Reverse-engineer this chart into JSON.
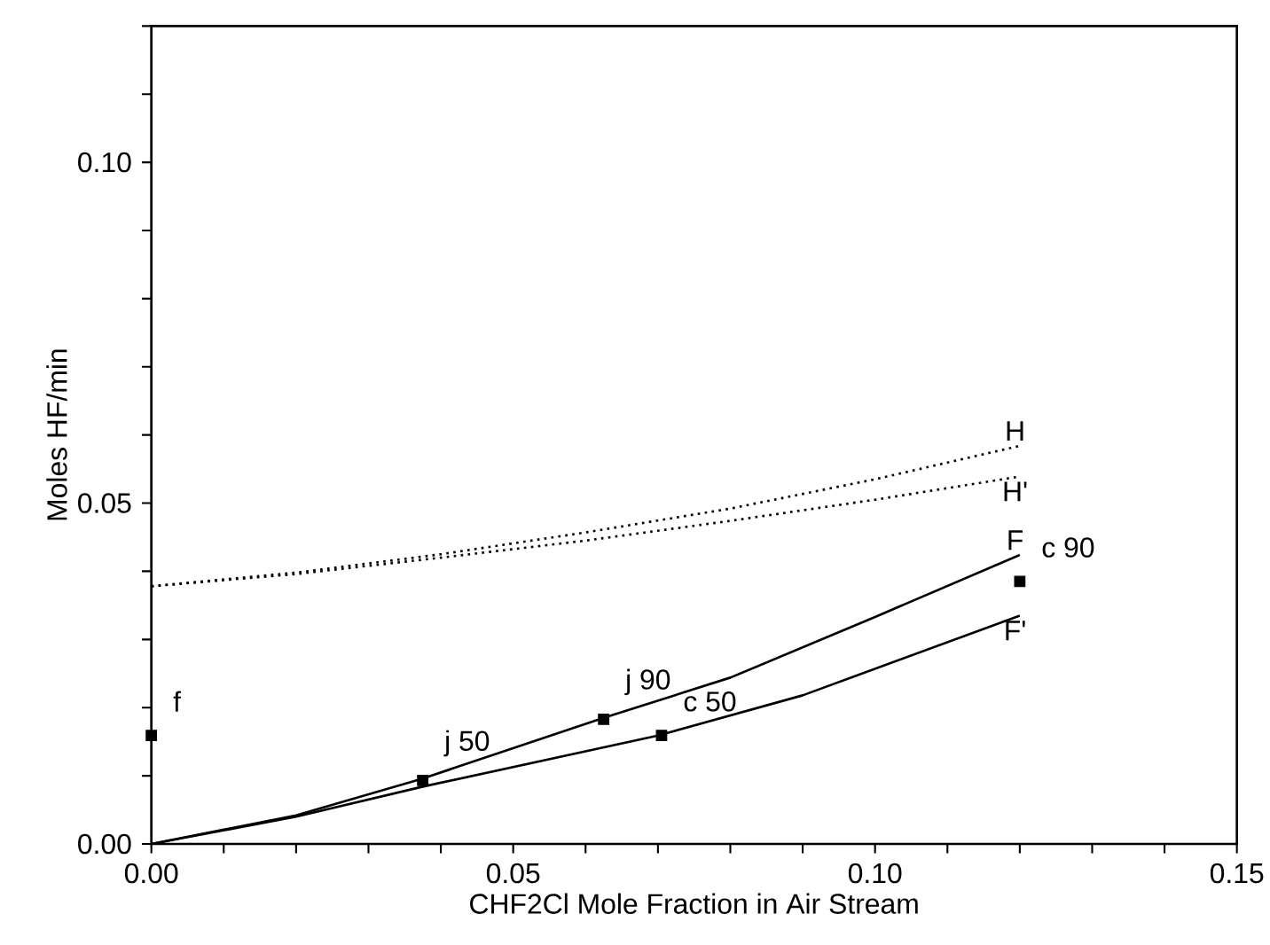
{
  "chart_data": {
    "type": "line",
    "xlabel": "CHF2Cl Mole Fraction in Air Stream",
    "ylabel": "Moles HF/min",
    "xlim": [
      0,
      0.15
    ],
    "ylim": [
      0,
      0.12
    ],
    "xticks": [
      {
        "value": 0,
        "label": "0.00"
      },
      {
        "value": 0.01,
        "label": null
      },
      {
        "value": 0.02,
        "label": null
      },
      {
        "value": 0.03,
        "label": null
      },
      {
        "value": 0.04,
        "label": null
      },
      {
        "value": 0.05,
        "label": "0.05"
      },
      {
        "value": 0.06,
        "label": null
      },
      {
        "value": 0.07,
        "label": null
      },
      {
        "value": 0.08,
        "label": null
      },
      {
        "value": 0.09,
        "label": null
      },
      {
        "value": 0.1,
        "label": "0.10"
      },
      {
        "value": 0.11,
        "label": null
      },
      {
        "value": 0.12,
        "label": null
      },
      {
        "value": 0.13,
        "label": null
      },
      {
        "value": 0.14,
        "label": null
      },
      {
        "value": 0.15,
        "label": "0.15"
      }
    ],
    "yticks": [
      {
        "value": 0,
        "label": "0.00"
      },
      {
        "value": 0.01,
        "label": null
      },
      {
        "value": 0.02,
        "label": null
      },
      {
        "value": 0.03,
        "label": null
      },
      {
        "value": 0.04,
        "label": null
      },
      {
        "value": 0.05,
        "label": "0.05"
      },
      {
        "value": 0.06,
        "label": null
      },
      {
        "value": 0.07,
        "label": null
      },
      {
        "value": 0.08,
        "label": null
      },
      {
        "value": 0.09,
        "label": null
      },
      {
        "value": 0.1,
        "label": "0.10"
      },
      {
        "value": 0.11,
        "label": null
      },
      {
        "value": 0.12,
        "label": null
      }
    ],
    "series": [
      {
        "name": "H",
        "line_style": "dotted",
        "color": "#000000",
        "x": [
          0,
          0.02,
          0.04,
          0.06,
          0.08,
          0.1,
          0.12
        ],
        "values": [
          0.0378,
          0.0398,
          0.0425,
          0.0457,
          0.0492,
          0.0535,
          0.0584
        ]
      },
      {
        "name": "H'",
        "line_style": "dotted",
        "color": "#000000",
        "x": [
          0,
          0.02,
          0.04,
          0.06,
          0.08,
          0.1,
          0.12
        ],
        "values": [
          0.0378,
          0.0396,
          0.042,
          0.0445,
          0.0474,
          0.0505,
          0.0539
        ]
      },
      {
        "name": "F",
        "line_style": "solid",
        "color": "#000000",
        "x": [
          0,
          0.02,
          0.0375,
          0.0625,
          0.08,
          0.1,
          0.12
        ],
        "values": [
          0,
          0.0042,
          0.0096,
          0.0185,
          0.0244,
          0.0333,
          0.0424
        ]
      },
      {
        "name": "F'",
        "line_style": "solid",
        "color": "#000000",
        "x": [
          0,
          0.02,
          0.0375,
          0.07,
          0.09,
          0.12
        ],
        "values": [
          0,
          0.004,
          0.0084,
          0.0159,
          0.0218,
          0.0335
        ]
      },
      {
        "type": "scatter",
        "marker": "square",
        "color": "#000000",
        "x": [
          0,
          0.0375,
          0.0625,
          0.0705,
          0.12
        ],
        "values": [
          0.0159,
          0.0093,
          0.0183,
          0.0159,
          0.0385
        ]
      }
    ],
    "annotations": [
      {
        "text": "f",
        "x": 0,
        "y": 0.0159
      },
      {
        "text": "j 50",
        "x": 0.0375,
        "y": 0.0093
      },
      {
        "text": "j 90",
        "x": 0.0625,
        "y": 0.0183
      },
      {
        "text": "c 50",
        "x": 0.0705,
        "y": 0.0159
      },
      {
        "text": "c 90",
        "x": 0.12,
        "y": 0.0385
      }
    ]
  }
}
